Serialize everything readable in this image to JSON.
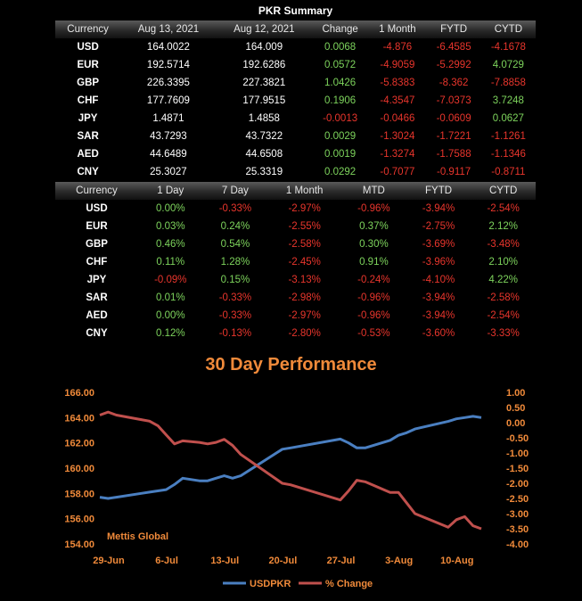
{
  "summary_title": "PKR Summary",
  "table1": {
    "headers": [
      "Currency",
      "Aug 13, 2021",
      "Aug 12, 2021",
      "Change",
      "1 Month",
      "FYTD",
      "CYTD"
    ],
    "rows": [
      [
        "USD",
        "164.0022",
        "164.009",
        "0.0068",
        "-4.876",
        "-6.4585",
        "-4.1678"
      ],
      [
        "EUR",
        "192.5714",
        "192.6286",
        "0.0572",
        "-4.9059",
        "-5.2992",
        "4.0729"
      ],
      [
        "GBP",
        "226.3395",
        "227.3821",
        "1.0426",
        "-5.8383",
        "-8.362",
        "-7.8858"
      ],
      [
        "CHF",
        "177.7609",
        "177.9515",
        "0.1906",
        "-4.3547",
        "-7.0373",
        "3.7248"
      ],
      [
        "JPY",
        "1.4871",
        "1.4858",
        "-0.0013",
        "-0.0466",
        "-0.0609",
        "0.0627"
      ],
      [
        "SAR",
        "43.7293",
        "43.7322",
        "0.0029",
        "-1.3024",
        "-1.7221",
        "-1.1261"
      ],
      [
        "AED",
        "44.6489",
        "44.6508",
        "0.0019",
        "-1.3274",
        "-1.7588",
        "-1.1346"
      ],
      [
        "CNY",
        "25.3027",
        "25.3319",
        "0.0292",
        "-0.7077",
        "-0.9117",
        "-0.8711"
      ]
    ]
  },
  "table2": {
    "headers": [
      "Currency",
      "1 Day",
      "7 Day",
      "1 Month",
      "MTD",
      "FYTD",
      "CYTD"
    ],
    "rows": [
      [
        "USD",
        "0.00%",
        "-0.33%",
        "-2.97%",
        "-0.96%",
        "-3.94%",
        "-2.54%"
      ],
      [
        "EUR",
        "0.03%",
        "0.24%",
        "-2.55%",
        "0.37%",
        "-2.75%",
        "2.12%"
      ],
      [
        "GBP",
        "0.46%",
        "0.54%",
        "-2.58%",
        "0.30%",
        "-3.69%",
        "-3.48%"
      ],
      [
        "CHF",
        "0.11%",
        "1.28%",
        "-2.45%",
        "0.91%",
        "-3.96%",
        "2.10%"
      ],
      [
        "JPY",
        "-0.09%",
        "0.15%",
        "-3.13%",
        "-0.24%",
        "-4.10%",
        "4.22%"
      ],
      [
        "SAR",
        "0.01%",
        "-0.33%",
        "-2.98%",
        "-0.96%",
        "-3.94%",
        "-2.58%"
      ],
      [
        "AED",
        "0.00%",
        "-0.33%",
        "-2.97%",
        "-0.96%",
        "-3.94%",
        "-2.54%"
      ],
      [
        "CNY",
        "0.12%",
        "-0.13%",
        "-2.80%",
        "-0.53%",
        "-3.60%",
        "-3.33%"
      ]
    ]
  },
  "colors": {
    "positive": "#7dd35c",
    "negative": "#e8352c",
    "usdpkr": "#4a7fc1",
    "change": "#c0504d",
    "axis": "#f08a3a"
  },
  "chart_data": {
    "type": "line",
    "title": "30 Day Performance",
    "watermark": "Mettis Global",
    "x_tick_labels": [
      "29-Jun",
      "6-Jul",
      "13-Jul",
      "20-Jul",
      "27-Jul",
      "3-Aug",
      "10-Aug"
    ],
    "x_range": [
      0,
      46
    ],
    "x_tick_positions": [
      0,
      7,
      14,
      21,
      28,
      35,
      42
    ],
    "y_left": {
      "min": 154,
      "max": 166,
      "step": 2,
      "tick_labels": [
        "154.00",
        "156.00",
        "158.00",
        "160.00",
        "162.00",
        "164.00",
        "166.00"
      ]
    },
    "y_right": {
      "min": -4,
      "max": 1,
      "step": 0.5,
      "tick_labels": [
        "-4.00",
        "-3.50",
        "-3.00",
        "-2.50",
        "-2.00",
        "-1.50",
        "-1.00",
        "-0.50",
        "0.00",
        "0.50",
        "1.00"
      ]
    },
    "series": [
      {
        "name": "USDPKR",
        "axis": "left",
        "x": [
          0,
          1,
          2,
          5,
          6,
          7,
          8,
          9,
          10,
          12,
          13,
          14,
          15,
          16,
          17,
          22,
          23,
          29,
          30,
          31,
          32,
          35,
          36,
          37,
          38,
          42,
          43,
          44,
          45,
          46
        ],
        "values": [
          157.7,
          157.6,
          157.7,
          158.0,
          158.1,
          158.2,
          158.3,
          158.7,
          159.2,
          159.0,
          159.0,
          159.2,
          159.4,
          159.2,
          159.4,
          161.5,
          161.6,
          162.3,
          162.0,
          161.6,
          161.6,
          162.2,
          162.6,
          162.8,
          163.1,
          163.7,
          163.9,
          164.0,
          164.1,
          164.0
        ]
      },
      {
        "name": "% Change",
        "axis": "right",
        "x": [
          0,
          1,
          2,
          5,
          6,
          7,
          8,
          9,
          10,
          12,
          13,
          14,
          15,
          16,
          17,
          22,
          23,
          29,
          30,
          31,
          32,
          35,
          36,
          37,
          38,
          42,
          43,
          44,
          45,
          46
        ],
        "values": [
          0.25,
          0.35,
          0.25,
          0.1,
          0.05,
          -0.1,
          -0.4,
          -0.7,
          -0.6,
          -0.65,
          -0.7,
          -0.65,
          -0.55,
          -0.75,
          -1.05,
          -2.0,
          -2.05,
          -2.55,
          -2.25,
          -1.9,
          -1.95,
          -2.3,
          -2.3,
          -2.65,
          -3.0,
          -3.45,
          -3.2,
          -3.1,
          -3.4,
          -3.5
        ]
      }
    ],
    "legend_position": "bottom-center"
  }
}
